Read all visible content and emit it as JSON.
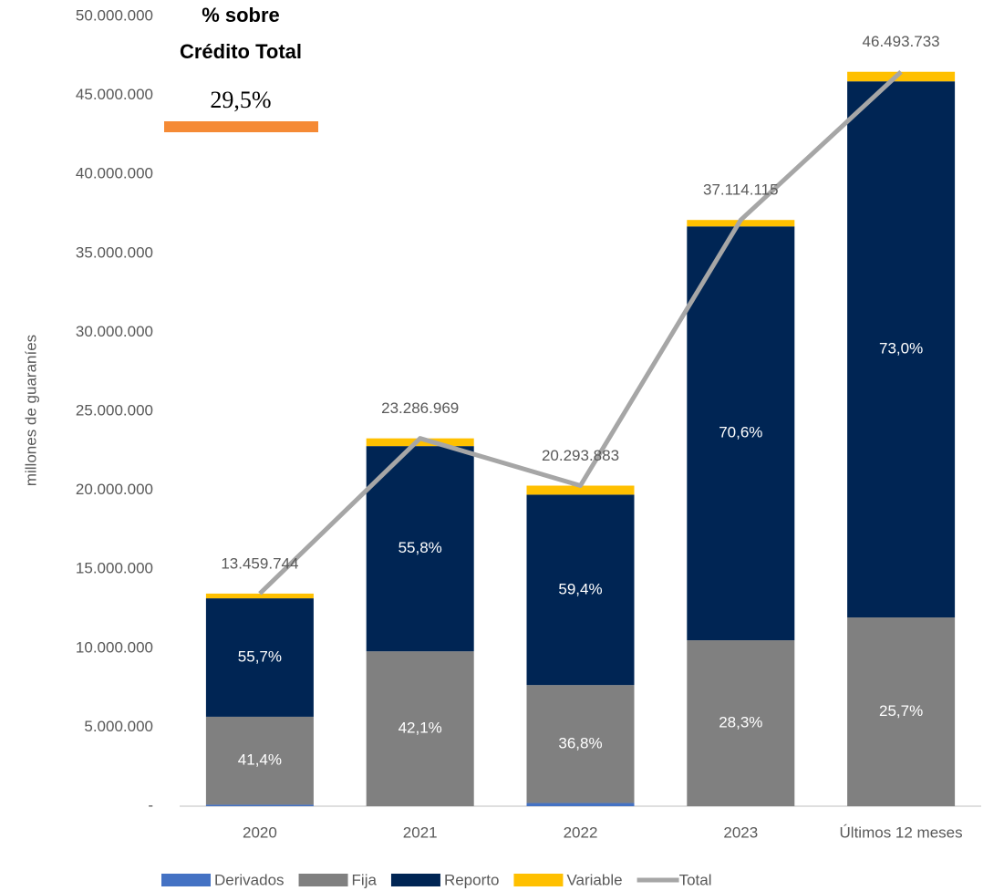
{
  "chart_data": {
    "type": "stacked_bar_line",
    "ylabel": "millones de guaraníes",
    "categories": [
      "2020",
      "2021",
      "2022",
      "2023",
      "Últimos 12 meses"
    ],
    "ylim": [
      0,
      50000000
    ],
    "yticks": [
      {
        "value": 0,
        "label": "-"
      },
      {
        "value": 5000000,
        "label": "5.000.000"
      },
      {
        "value": 10000000,
        "label": "10.000.000"
      },
      {
        "value": 15000000,
        "label": "15.000.000"
      },
      {
        "value": 20000000,
        "label": "20.000.000"
      },
      {
        "value": 25000000,
        "label": "25.000.000"
      },
      {
        "value": 30000000,
        "label": "30.000.000"
      },
      {
        "value": 35000000,
        "label": "35.000.000"
      },
      {
        "value": 40000000,
        "label": "40.000.000"
      },
      {
        "value": 45000000,
        "label": "45.000.000"
      },
      {
        "value": 50000000,
        "label": "50.000.000"
      }
    ],
    "series": [
      {
        "name": "Derivados",
        "color": "#4472c4",
        "values": [
          90000,
          0,
          200000,
          0,
          0
        ]
      },
      {
        "name": "Fija",
        "color": "#808080",
        "values": [
          5572334,
          9803814,
          7468149,
          10503295,
          11948889
        ],
        "share_labels": [
          "41,4%",
          "42,1%",
          "36,8%",
          "28,3%",
          "25,7%"
        ]
      },
      {
        "name": "Reporto",
        "color": "#002554",
        "values": [
          7497077,
          12994129,
          12054566,
          26202565,
          33940425
        ],
        "share_labels": [
          "55,7%",
          "55,8%",
          "59,4%",
          "70,6%",
          "73,0%"
        ]
      },
      {
        "name": "Variable",
        "color": "#ffc000",
        "values": [
          300333,
          489026,
          571168,
          408255,
          604419
        ]
      },
      {
        "name": "Total",
        "color": "#a6a6a6",
        "kind": "line",
        "values": [
          13459744,
          23286969,
          20293883,
          37114115,
          46493733
        ],
        "value_labels": [
          "13.459.744",
          "23.286.969",
          "20.293.883",
          "37.114.115",
          "46.493.733"
        ]
      }
    ],
    "annotation": {
      "lines": [
        "% sobre",
        "Crédito Total"
      ],
      "value_label": "29,5%",
      "color": "#f58a35"
    }
  }
}
